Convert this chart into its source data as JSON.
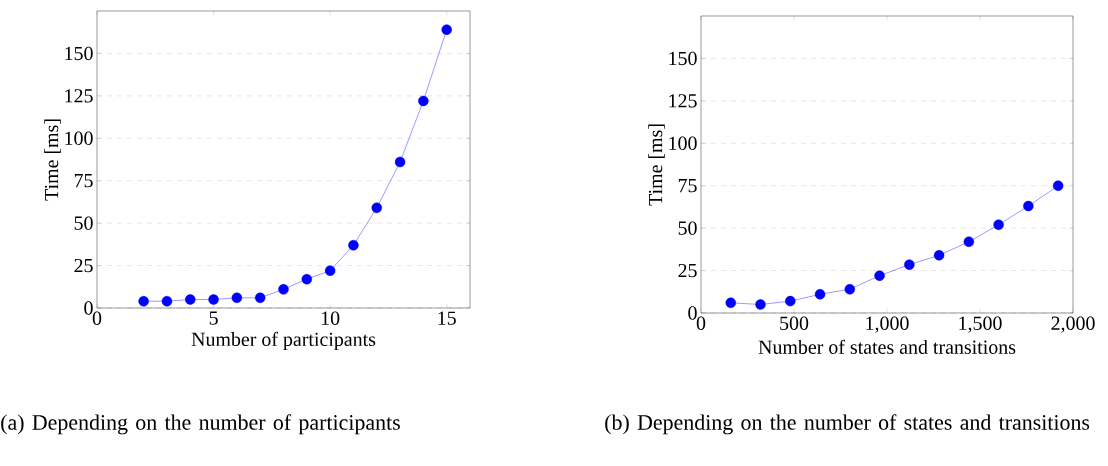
{
  "chart_data": [
    {
      "type": "line",
      "xlabel": "Number of participants",
      "ylabel": "Time [ms]",
      "x": [
        2,
        3,
        4,
        5,
        6,
        7,
        8,
        9,
        10,
        11,
        12,
        13,
        14,
        15
      ],
      "series": [
        {
          "color": "#0000ff",
          "values": [
            4,
            4,
            5,
            5,
            6,
            6,
            11,
            17,
            22,
            37,
            59,
            86,
            122,
            164
          ]
        }
      ],
      "xlim": [
        0,
        16
      ],
      "ylim": [
        0,
        175
      ],
      "xticks": [
        0,
        5,
        10,
        15
      ],
      "yticks": [
        0,
        25,
        50,
        75,
        100,
        125,
        150
      ],
      "grid": "y",
      "marker": "circle",
      "line_style": "solid",
      "annotations": [
        "(a) Depending on the number of participants"
      ]
    },
    {
      "type": "line",
      "xlabel": "Number of states and transitions",
      "ylabel": "Time [ms]",
      "x": [
        160,
        320,
        480,
        640,
        800,
        960,
        1120,
        1280,
        1440,
        1600,
        1760,
        1920
      ],
      "series": [
        {
          "color": "#0000ff",
          "values": [
            6,
            5,
            7,
            11,
            14,
            22,
            28.5,
            34,
            42,
            52,
            63,
            75
          ]
        }
      ],
      "xlim": [
        0,
        2000
      ],
      "ylim": [
        0,
        175
      ],
      "xticks": [
        0,
        500,
        {
          "value": 1000,
          "label": "1,000"
        },
        {
          "value": 1500,
          "label": "1,500"
        },
        {
          "value": 2000,
          "label": "2,000"
        }
      ],
      "yticks": [
        0,
        25,
        50,
        75,
        100,
        125,
        150
      ],
      "grid": "y",
      "marker": "circle",
      "line_style": "solid",
      "annotations": [
        "(b) Depending on the number of states and transitions"
      ]
    }
  ]
}
